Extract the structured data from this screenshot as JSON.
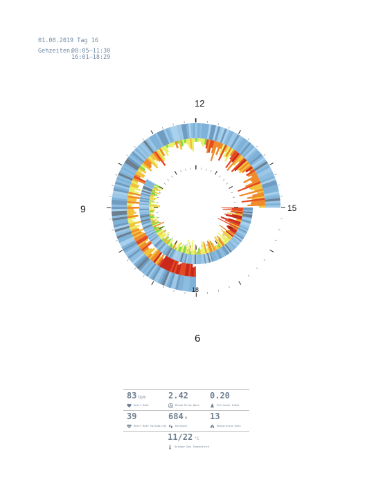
{
  "header": {
    "date_line": "01.08.2019 Tag 16",
    "times_label": "Gehzeiten:",
    "times": [
      "08:05–11:30",
      "16:01–18:29"
    ]
  },
  "clock": {
    "outer_hour_labels": [
      "12",
      "15",
      "9",
      "6"
    ],
    "inner_hour_labels": [
      "18"
    ]
  },
  "chart_data": {
    "type": "radial-bar",
    "description_visible": false,
    "outer_ring_hours": [
      6,
      15
    ],
    "inner_ring_hours": [
      15,
      22
    ],
    "color_scale": [
      "#8cbde0",
      "#a8d67a",
      "#7fd84a",
      "#e8f068",
      "#f3c23c",
      "#f08a2a",
      "#e24a24",
      "#c9281a"
    ],
    "gap_color": "#6b7f90"
  },
  "metrics": {
    "rows": [
      [
        {
          "value": "83",
          "unit": "bpm",
          "label": "Heart Rate",
          "icon": "heart-icon"
        },
        {
          "value": "2.42",
          "unit": "",
          "label": "Blood Pulse Wave",
          "icon": "pulse-wave-icon"
        },
        {
          "value": "0.20",
          "unit": "",
          "label": "Perfusion Index",
          "icon": "perfusion-icon"
        }
      ],
      [
        {
          "value": "39",
          "unit": "",
          "label": "Heart Rate Variability",
          "icon": "heart-variability-icon"
        },
        {
          "value": "684",
          "unit": "m",
          "label": "Distance",
          "icon": "footsteps-icon"
        },
        {
          "value": "13",
          "unit": "",
          "label": "Respiration Rate",
          "icon": "lungs-icon"
        }
      ]
    ],
    "temperature": {
      "value": "11/22",
      "unit": "°C",
      "label": "Outdoor Day Temperature",
      "icon": "thermometer-icon"
    }
  }
}
